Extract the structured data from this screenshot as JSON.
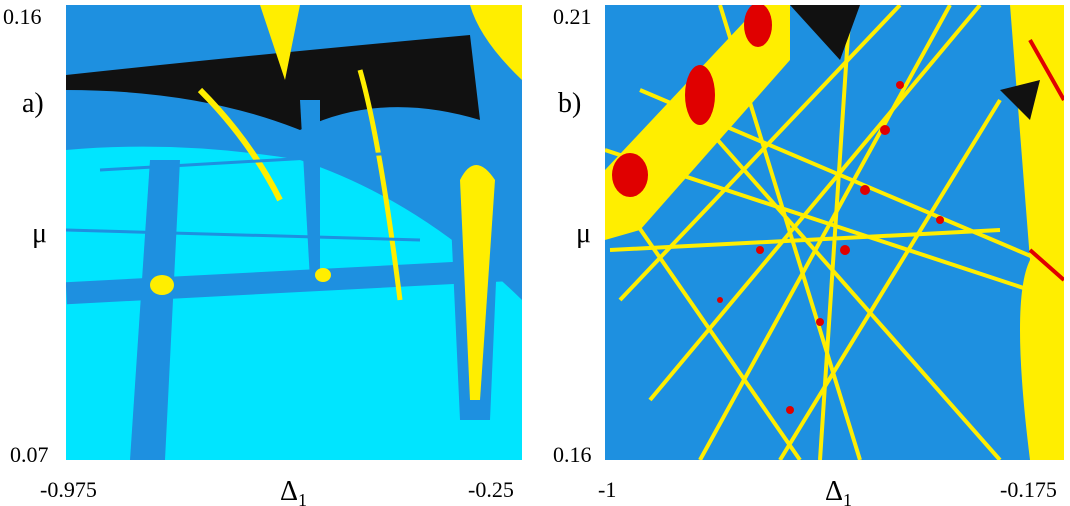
{
  "panels": [
    {
      "tag": "a)",
      "y_label": "μ",
      "x_label": "Δ",
      "x_label_sub": "1",
      "y_top": "0.16",
      "y_bottom": "0.07",
      "x_left": "-0.975",
      "x_right": "-0.25"
    },
    {
      "tag": "b)",
      "y_label": "μ",
      "x_label": "Δ",
      "x_label_sub": "1",
      "y_top": "0.21",
      "y_bottom": "0.16",
      "x_left": "-1",
      "x_right": "-0.175"
    }
  ]
}
